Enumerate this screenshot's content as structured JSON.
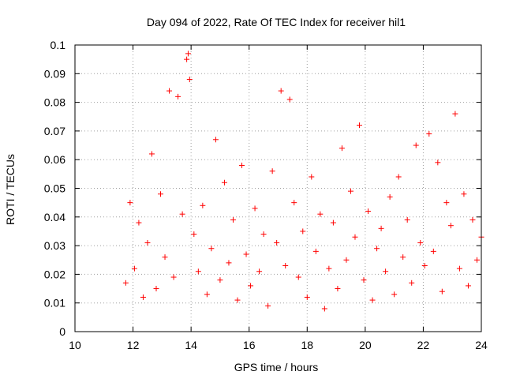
{
  "chart_data": {
    "type": "scatter",
    "title": "Day 094 of 2022, Rate Of TEC Index for receiver hil1",
    "xlabel": "GPS time / hours",
    "ylabel": "ROTI / TECUs",
    "xlim": [
      10,
      24
    ],
    "ylim": [
      0,
      0.1
    ],
    "xticks": [
      10,
      12,
      14,
      16,
      18,
      20,
      22,
      24
    ],
    "xtick_labels": [
      "10",
      "12",
      "14",
      "16",
      "18",
      "20",
      "22",
      "24"
    ],
    "yticks": [
      0,
      0.01,
      0.02,
      0.03,
      0.04,
      0.05,
      0.06,
      0.07,
      0.08,
      0.09,
      0.1
    ],
    "ytick_labels": [
      "0",
      "0.01",
      "0.02",
      "0.03",
      "0.04",
      "0.05",
      "0.06",
      "0.07",
      "0.08",
      "0.09",
      "0.1"
    ],
    "grid": true,
    "marker": "+",
    "marker_color": "#ff0000",
    "series": [
      {
        "name": "ROTI",
        "x": [
          11.75,
          11.9,
          12.05,
          12.2,
          12.35,
          12.5,
          12.65,
          12.8,
          12.95,
          13.1,
          13.25,
          13.4,
          13.55,
          13.7,
          13.85,
          13.9,
          13.95,
          14.1,
          14.25,
          14.4,
          14.55,
          14.7,
          14.85,
          15.0,
          15.15,
          15.3,
          15.45,
          15.6,
          15.75,
          15.9,
          16.05,
          16.2,
          16.35,
          16.5,
          16.65,
          16.8,
          16.95,
          17.1,
          17.25,
          17.4,
          17.55,
          17.7,
          17.85,
          18.0,
          18.15,
          18.3,
          18.45,
          18.6,
          18.75,
          18.9,
          19.05,
          19.2,
          19.35,
          19.5,
          19.65,
          19.8,
          19.95,
          20.1,
          20.25,
          20.4,
          20.55,
          20.7,
          20.85,
          21.0,
          21.15,
          21.3,
          21.45,
          21.6,
          21.75,
          21.9,
          22.05,
          22.2,
          22.35,
          22.5,
          22.65,
          22.8,
          22.95,
          23.1,
          23.25,
          23.4,
          23.55,
          23.7,
          23.85,
          24.0
        ],
        "y": [
          0.017,
          0.045,
          0.022,
          0.038,
          0.012,
          0.031,
          0.062,
          0.015,
          0.048,
          0.026,
          0.084,
          0.019,
          0.082,
          0.041,
          0.095,
          0.097,
          0.088,
          0.034,
          0.021,
          0.044,
          0.013,
          0.029,
          0.067,
          0.018,
          0.052,
          0.024,
          0.039,
          0.011,
          0.058,
          0.027,
          0.016,
          0.043,
          0.021,
          0.034,
          0.009,
          0.056,
          0.031,
          0.084,
          0.023,
          0.081,
          0.045,
          0.019,
          0.035,
          0.012,
          0.054,
          0.028,
          0.041,
          0.008,
          0.022,
          0.038,
          0.015,
          0.064,
          0.025,
          0.049,
          0.033,
          0.072,
          0.018,
          0.042,
          0.011,
          0.029,
          0.036,
          0.021,
          0.047,
          0.013,
          0.054,
          0.026,
          0.039,
          0.017,
          0.065,
          0.031,
          0.023,
          0.069,
          0.028,
          0.059,
          0.014,
          0.045,
          0.037,
          0.076,
          0.022,
          0.048,
          0.016,
          0.039,
          0.025,
          0.033
        ]
      }
    ]
  }
}
